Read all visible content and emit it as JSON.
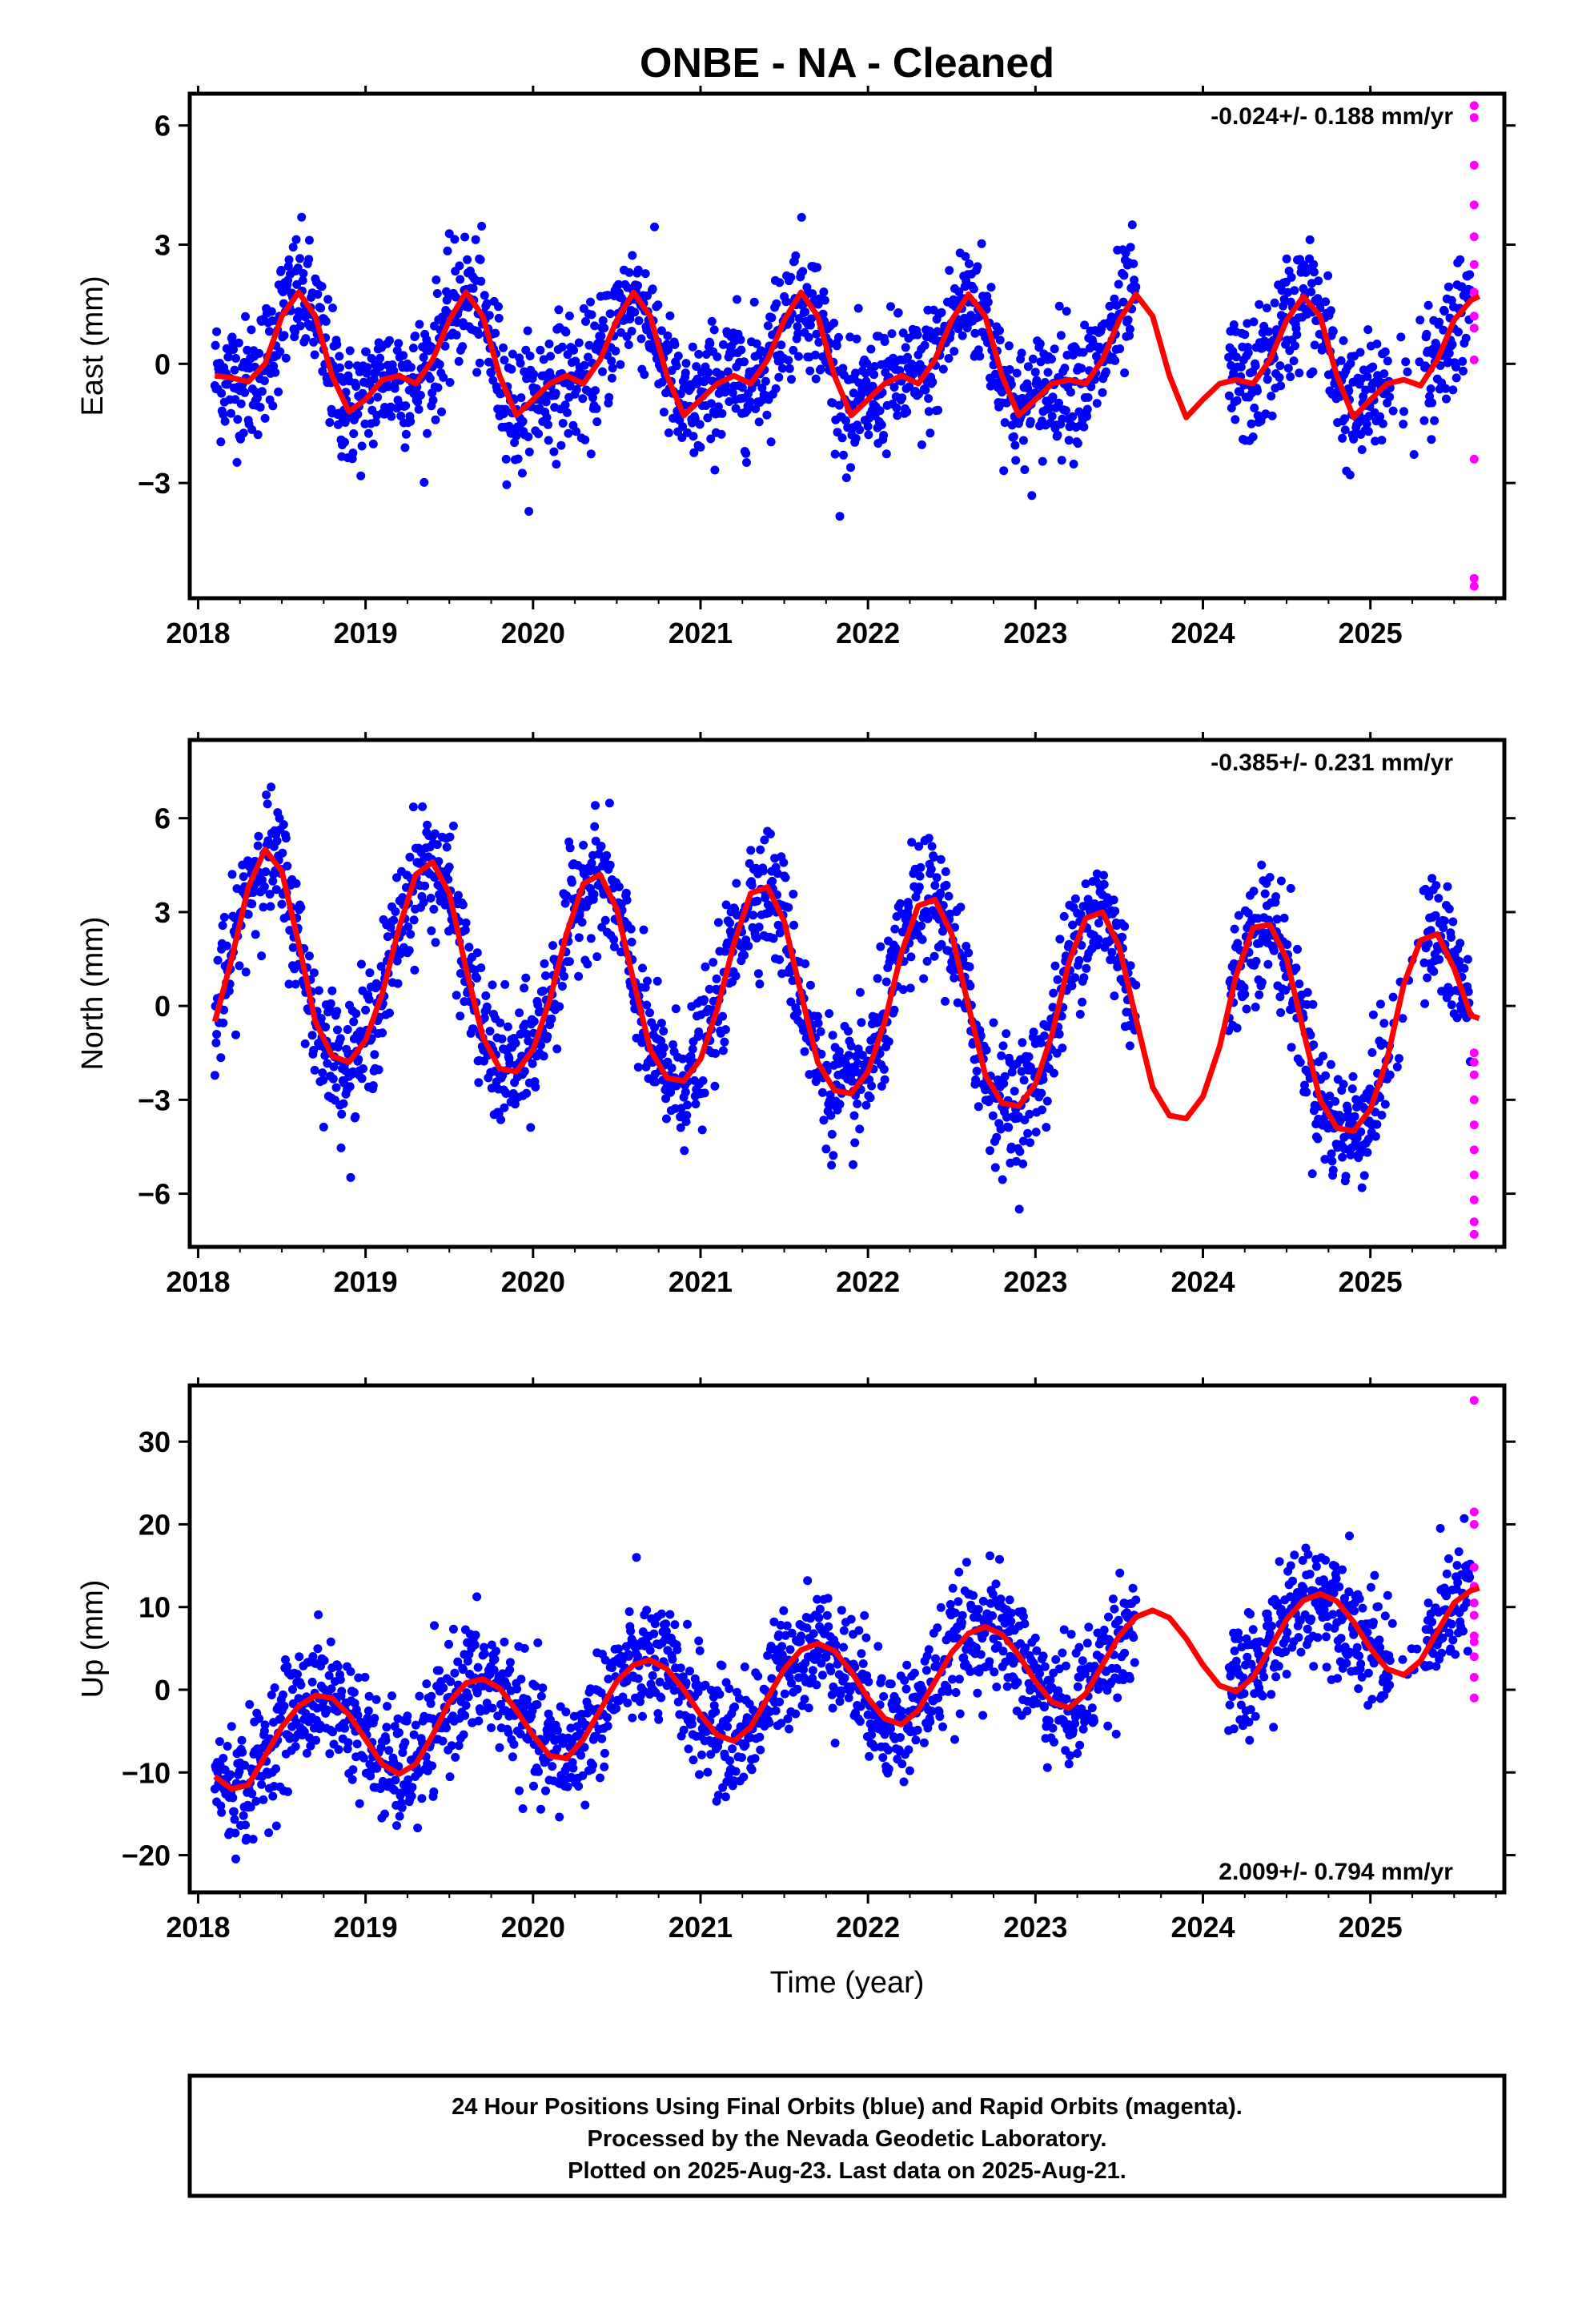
{
  "title": "ONBE  - NA - Cleaned",
  "colors": {
    "final_points": "#0000ff",
    "rapid_points": "#ff00ff",
    "model_line": "#ff0000",
    "frame": "#000000"
  },
  "x_axis": {
    "label": "Time (year)",
    "range": [
      2017.95,
      2025.8
    ],
    "ticks": [
      2018,
      2019,
      2020,
      2021,
      2022,
      2023,
      2024,
      2025
    ],
    "tick_labels": [
      "2018",
      "2019",
      "2020",
      "2021",
      "2022",
      "2023",
      "2024",
      "2025"
    ]
  },
  "footer": {
    "line1": "24 Hour Positions Using Final Orbits (blue) and Rapid Orbits (magenta).",
    "line2": "Processed by the Nevada Geodetic Laboratory.",
    "line3": "Plotted on 2025-Aug-23. Last data on 2025-Aug-21."
  },
  "chart_data": [
    {
      "type": "scatter",
      "component": "east",
      "ylabel": "East (mm)",
      "ylim": [
        -5.9,
        6.8
      ],
      "yticks": [
        -3,
        0,
        3,
        6
      ],
      "ytick_labels": [
        "−3",
        "0",
        "3",
        "6"
      ],
      "rate_label": "-0.024+/- 0.188 mm/yr",
      "rate_position": "top-right",
      "data_gap": [
        2023.6,
        2024.15
      ],
      "series": [
        {
          "name": "Final Orbits",
          "color": "#0000ff",
          "noise_sd": 0.8,
          "approx_n": 2100
        },
        {
          "name": "Rapid Orbits",
          "color": "#ff00ff",
          "x": 2025.62,
          "values": [
            6.5,
            6.2,
            5.0,
            4.0,
            3.2,
            2.5,
            1.8,
            1.2,
            0.9,
            0.1,
            -2.4,
            -5.6,
            -5.4
          ]
        }
      ],
      "model_curve": {
        "x": [
          2018.1,
          2018.2,
          2018.3,
          2018.4,
          2018.5,
          2018.6,
          2018.7,
          2018.8,
          2018.9,
          2019.0,
          2019.1,
          2019.2,
          2019.3,
          2019.4,
          2019.5,
          2019.6,
          2019.7,
          2019.8,
          2019.9,
          2020.0,
          2020.1,
          2020.2,
          2020.3,
          2020.4,
          2020.5,
          2020.6,
          2020.7,
          2020.8,
          2020.9,
          2021.0,
          2021.1,
          2021.2,
          2021.3,
          2021.4,
          2021.5,
          2021.6,
          2021.7,
          2021.8,
          2021.9,
          2022.0,
          2022.1,
          2022.2,
          2022.3,
          2022.4,
          2022.5,
          2022.6,
          2022.7,
          2022.8,
          2022.9,
          2023.0,
          2023.1,
          2023.2,
          2023.3,
          2023.4,
          2023.5,
          2023.6,
          2023.7,
          2023.8,
          2023.9,
          2024.0,
          2024.1,
          2024.2,
          2024.3,
          2024.4,
          2024.5,
          2024.6,
          2024.7,
          2024.8,
          2024.9,
          2025.0,
          2025.1,
          2025.2,
          2025.3,
          2025.4,
          2025.5,
          2025.6,
          2025.65
        ],
        "y": [
          -0.3,
          -0.35,
          -0.45,
          0.0,
          1.2,
          1.8,
          1.2,
          -0.3,
          -1.2,
          -0.9,
          -0.4,
          -0.3,
          -0.5,
          0.1,
          1.1,
          1.8,
          1.2,
          -0.3,
          -1.3,
          -0.9,
          -0.5,
          -0.3,
          -0.5,
          0.1,
          1.1,
          1.8,
          1.2,
          -0.3,
          -1.3,
          -0.9,
          -0.5,
          -0.3,
          -0.5,
          0.1,
          1.1,
          1.8,
          1.2,
          -0.3,
          -1.3,
          -0.9,
          -0.5,
          -0.3,
          -0.5,
          0.1,
          1.1,
          1.75,
          1.2,
          -0.3,
          -1.3,
          -0.9,
          -0.5,
          -0.4,
          -0.5,
          0.1,
          1.1,
          1.75,
          1.2,
          -0.3,
          -1.35,
          -0.9,
          -0.5,
          -0.4,
          -0.5,
          0.1,
          1.1,
          1.7,
          1.2,
          -0.3,
          -1.35,
          -0.9,
          -0.5,
          -0.4,
          -0.55,
          0.1,
          1.1,
          1.6,
          1.7
        ]
      }
    },
    {
      "type": "scatter",
      "component": "north",
      "ylabel": "North (mm)",
      "ylim": [
        -7.7,
        8.5
      ],
      "yticks": [
        -6,
        -3,
        0,
        3,
        6
      ],
      "ytick_labels": [
        "−6",
        "−3",
        "0",
        "3",
        "6"
      ],
      "rate_label": "-0.385+/- 0.231 mm/yr",
      "rate_position": "top-right",
      "data_gap": [
        2023.6,
        2024.15
      ],
      "series": [
        {
          "name": "Final Orbits",
          "color": "#0000ff",
          "noise_sd": 1.0,
          "approx_n": 2100
        },
        {
          "name": "Rapid Orbits",
          "color": "#ff00ff",
          "x": 2025.62,
          "values": [
            -1.5,
            -1.8,
            -2.2,
            -3.0,
            -3.8,
            -4.6,
            -5.4,
            -6.2,
            -6.9,
            -7.3
          ]
        }
      ],
      "model_curve": {
        "x": [
          2018.1,
          2018.2,
          2018.3,
          2018.4,
          2018.5,
          2018.6,
          2018.7,
          2018.8,
          2018.9,
          2019.0,
          2019.1,
          2019.2,
          2019.3,
          2019.4,
          2019.5,
          2019.6,
          2019.7,
          2019.8,
          2019.9,
          2020.0,
          2020.1,
          2020.2,
          2020.3,
          2020.4,
          2020.5,
          2020.6,
          2020.7,
          2020.8,
          2020.9,
          2021.0,
          2021.1,
          2021.2,
          2021.3,
          2021.4,
          2021.5,
          2021.6,
          2021.7,
          2021.8,
          2021.9,
          2022.0,
          2022.1,
          2022.2,
          2022.3,
          2022.4,
          2022.5,
          2022.6,
          2022.7,
          2022.8,
          2022.9,
          2023.0,
          2023.1,
          2023.2,
          2023.3,
          2023.4,
          2023.5,
          2023.6,
          2023.7,
          2023.8,
          2023.9,
          2024.0,
          2024.1,
          2024.2,
          2024.3,
          2024.4,
          2024.5,
          2024.6,
          2024.7,
          2024.8,
          2024.9,
          2025.0,
          2025.1,
          2025.2,
          2025.3,
          2025.4,
          2025.5,
          2025.6,
          2025.65
        ],
        "y": [
          -0.5,
          1.5,
          3.8,
          5.0,
          4.3,
          2.0,
          -0.5,
          -1.6,
          -1.8,
          -1.1,
          0.4,
          2.5,
          4.2,
          4.6,
          3.6,
          1.2,
          -1.0,
          -2.0,
          -2.1,
          -1.4,
          0.2,
          2.3,
          3.9,
          4.2,
          3.1,
          0.8,
          -1.4,
          -2.3,
          -2.4,
          -1.7,
          -0.1,
          2.0,
          3.6,
          3.8,
          2.7,
          0.4,
          -1.8,
          -2.7,
          -2.8,
          -2.1,
          -0.5,
          1.7,
          3.2,
          3.4,
          2.3,
          0.0,
          -2.2,
          -3.1,
          -3.2,
          -2.5,
          -0.9,
          1.4,
          2.8,
          3.0,
          1.9,
          -0.4,
          -2.6,
          -3.5,
          -3.6,
          -2.9,
          -1.3,
          1.0,
          2.5,
          2.6,
          1.5,
          -0.8,
          -3.0,
          -3.9,
          -4.0,
          -3.3,
          -1.7,
          0.7,
          2.1,
          2.3,
          1.2,
          -0.3,
          -0.4
        ]
      }
    },
    {
      "type": "scatter",
      "component": "up",
      "ylabel": "Up (mm)",
      "ylim": [
        -24.5,
        36.8
      ],
      "yticks": [
        -20,
        -10,
        0,
        10,
        20,
        30
      ],
      "ytick_labels": [
        "−20",
        "−10",
        "0",
        "10",
        "20",
        "30"
      ],
      "rate_label": "2.009+/- 0.794 mm/yr",
      "rate_position": "bottom-right",
      "data_gap": [
        2023.6,
        2024.15
      ],
      "series": [
        {
          "name": "Final Orbits",
          "color": "#0000ff",
          "noise_sd": 3.6,
          "approx_n": 2100
        },
        {
          "name": "Rapid Orbits",
          "color": "#ff00ff",
          "x": 2025.62,
          "values": [
            35.0,
            21.5,
            20.0,
            14.8,
            12.5,
            10.5,
            9.0,
            6.5,
            5.8,
            4.0,
            1.5,
            -1.0
          ]
        }
      ],
      "model_curve": {
        "x": [
          2018.1,
          2018.2,
          2018.3,
          2018.4,
          2018.5,
          2018.6,
          2018.7,
          2018.8,
          2018.9,
          2019.0,
          2019.1,
          2019.2,
          2019.3,
          2019.4,
          2019.5,
          2019.6,
          2019.7,
          2019.8,
          2019.9,
          2020.0,
          2020.1,
          2020.2,
          2020.3,
          2020.4,
          2020.5,
          2020.6,
          2020.7,
          2020.8,
          2020.9,
          2021.0,
          2021.1,
          2021.2,
          2021.3,
          2021.4,
          2021.5,
          2021.6,
          2021.7,
          2021.8,
          2021.9,
          2022.0,
          2022.1,
          2022.2,
          2022.3,
          2022.4,
          2022.5,
          2022.6,
          2022.7,
          2022.8,
          2022.9,
          2023.0,
          2023.1,
          2023.2,
          2023.3,
          2023.4,
          2023.5,
          2023.6,
          2023.7,
          2023.8,
          2023.9,
          2024.0,
          2024.1,
          2024.2,
          2024.3,
          2024.4,
          2024.5,
          2024.6,
          2024.7,
          2024.8,
          2024.9,
          2025.0,
          2025.1,
          2025.2,
          2025.3,
          2025.4,
          2025.5,
          2025.6,
          2025.65
        ],
        "y": [
          -10.5,
          -12.0,
          -11.5,
          -8.0,
          -4.5,
          -2.0,
          -0.7,
          -1.0,
          -3.0,
          -6.0,
          -9.0,
          -10.2,
          -9.0,
          -5.5,
          -1.5,
          0.8,
          1.3,
          0.2,
          -2.5,
          -5.5,
          -8.0,
          -8.3,
          -6.0,
          -2.5,
          1.0,
          3.0,
          3.6,
          2.5,
          0.0,
          -3.0,
          -5.5,
          -6.2,
          -4.5,
          -1.0,
          2.5,
          4.8,
          5.6,
          4.7,
          2.2,
          -1.0,
          -3.5,
          -4.2,
          -2.5,
          1.0,
          4.5,
          6.8,
          7.6,
          6.7,
          4.2,
          1.0,
          -1.5,
          -2.2,
          -0.5,
          3.0,
          6.5,
          8.8,
          9.6,
          8.7,
          6.2,
          3.0,
          0.5,
          -0.2,
          1.5,
          5.0,
          8.5,
          10.8,
          11.6,
          10.7,
          8.2,
          5.0,
          2.5,
          1.8,
          3.5,
          7.0,
          10.5,
          12.0,
          12.3
        ]
      }
    }
  ]
}
